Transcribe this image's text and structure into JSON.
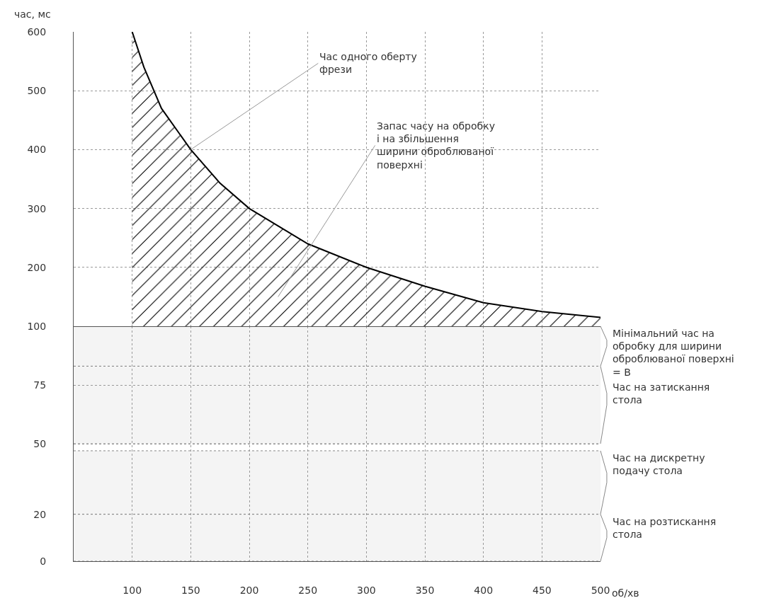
{
  "chart_data": [
    {
      "type": "area",
      "ylabel": "час, мс",
      "x": [
        100,
        110,
        125,
        150,
        175,
        200,
        250,
        300,
        350,
        400,
        450,
        500
      ],
      "series": [
        {
          "color": "#000000",
          "values": [
            600,
            540,
            470,
            400,
            343,
            300,
            240,
            200,
            168,
            140,
            125,
            115
          ]
        }
      ],
      "xlim": [
        50,
        500
      ],
      "xticks": [
        100,
        150,
        200,
        250,
        300,
        350,
        400,
        450,
        500
      ],
      "ylim": [
        100,
        600
      ],
      "yticks": [
        100,
        200,
        300,
        400,
        500,
        600
      ],
      "tick_labels": "y",
      "grid": true,
      "marker": "none",
      "line_style": "solid",
      "annotations": [
        {
          "text": "Час одного оберту фрези",
          "x": 150,
          "y": 400
        },
        "Запас часу на обробку і на збільшення ширини оброблюваної поверхні"
      ]
    },
    {
      "type": "area",
      "xlabel": "об/хв",
      "xlim": [
        50,
        500
      ],
      "xticks": [
        100,
        150,
        200,
        250,
        300,
        350,
        400,
        450,
        500
      ],
      "ylim": [
        0,
        100
      ],
      "yticks": [
        0,
        20,
        50,
        75
      ],
      "grid": true,
      "bands": [
        {
          "axis": "y",
          "from": 83,
          "to": 100,
          "color": "#f4f4f4",
          "label": "Мінімальний час на обробку для ширини оброблюваної поверхні = B"
        },
        {
          "axis": "y",
          "from": 50,
          "to": 83,
          "color": "#f4f4f4",
          "label": "Час на затискання стола"
        },
        {
          "axis": "y",
          "from": 20,
          "to": 47,
          "color": "#f4f4f4",
          "label": "Час на дискретну подачу стола"
        },
        {
          "axis": "y",
          "from": 0,
          "to": 20,
          "color": "#f4f4f4",
          "label": "Час на розтискання стола"
        }
      ]
    }
  ]
}
